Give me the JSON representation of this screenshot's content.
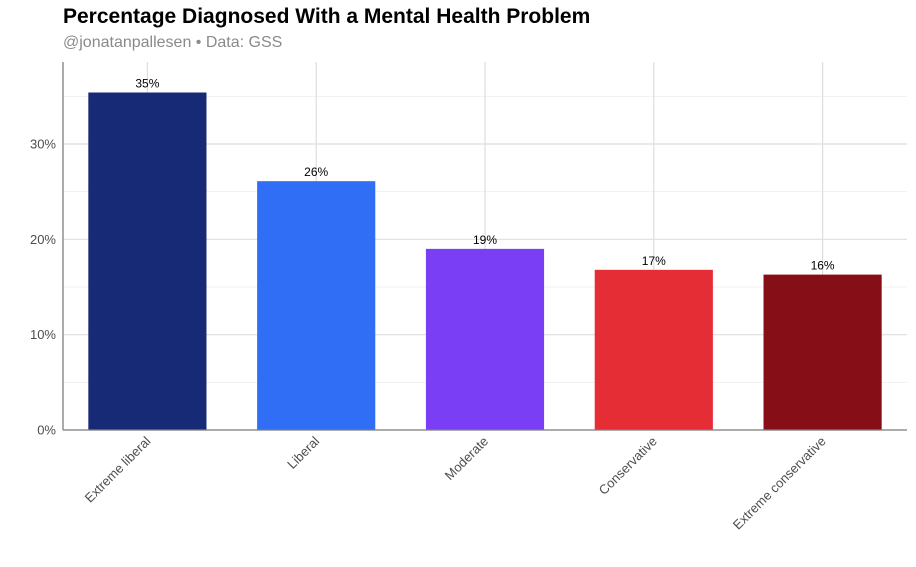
{
  "chart_data": {
    "type": "bar",
    "title": "Percentage Diagnosed With a Mental Health Problem",
    "subtitle": "@jonatanpallesen • Data: GSS",
    "xlabel": "",
    "ylabel": "",
    "categories": [
      "Extreme liberal",
      "Liberal",
      "Moderate",
      "Conservative",
      "Extreme conservative"
    ],
    "values": [
      35.4,
      26.1,
      19.0,
      16.8,
      16.3
    ],
    "data_labels": [
      "35%",
      "26%",
      "19%",
      "17%",
      "16%"
    ],
    "colors": [
      "#172a75",
      "#2f6ef5",
      "#7a3ef5",
      "#e52d36",
      "#850e17"
    ],
    "ylim": [
      0,
      38.6
    ],
    "yticks": [
      0,
      10,
      20,
      30
    ],
    "ytick_labels": [
      "0%",
      "10%",
      "20%",
      "30%"
    ],
    "grid": true,
    "legend": "none"
  }
}
